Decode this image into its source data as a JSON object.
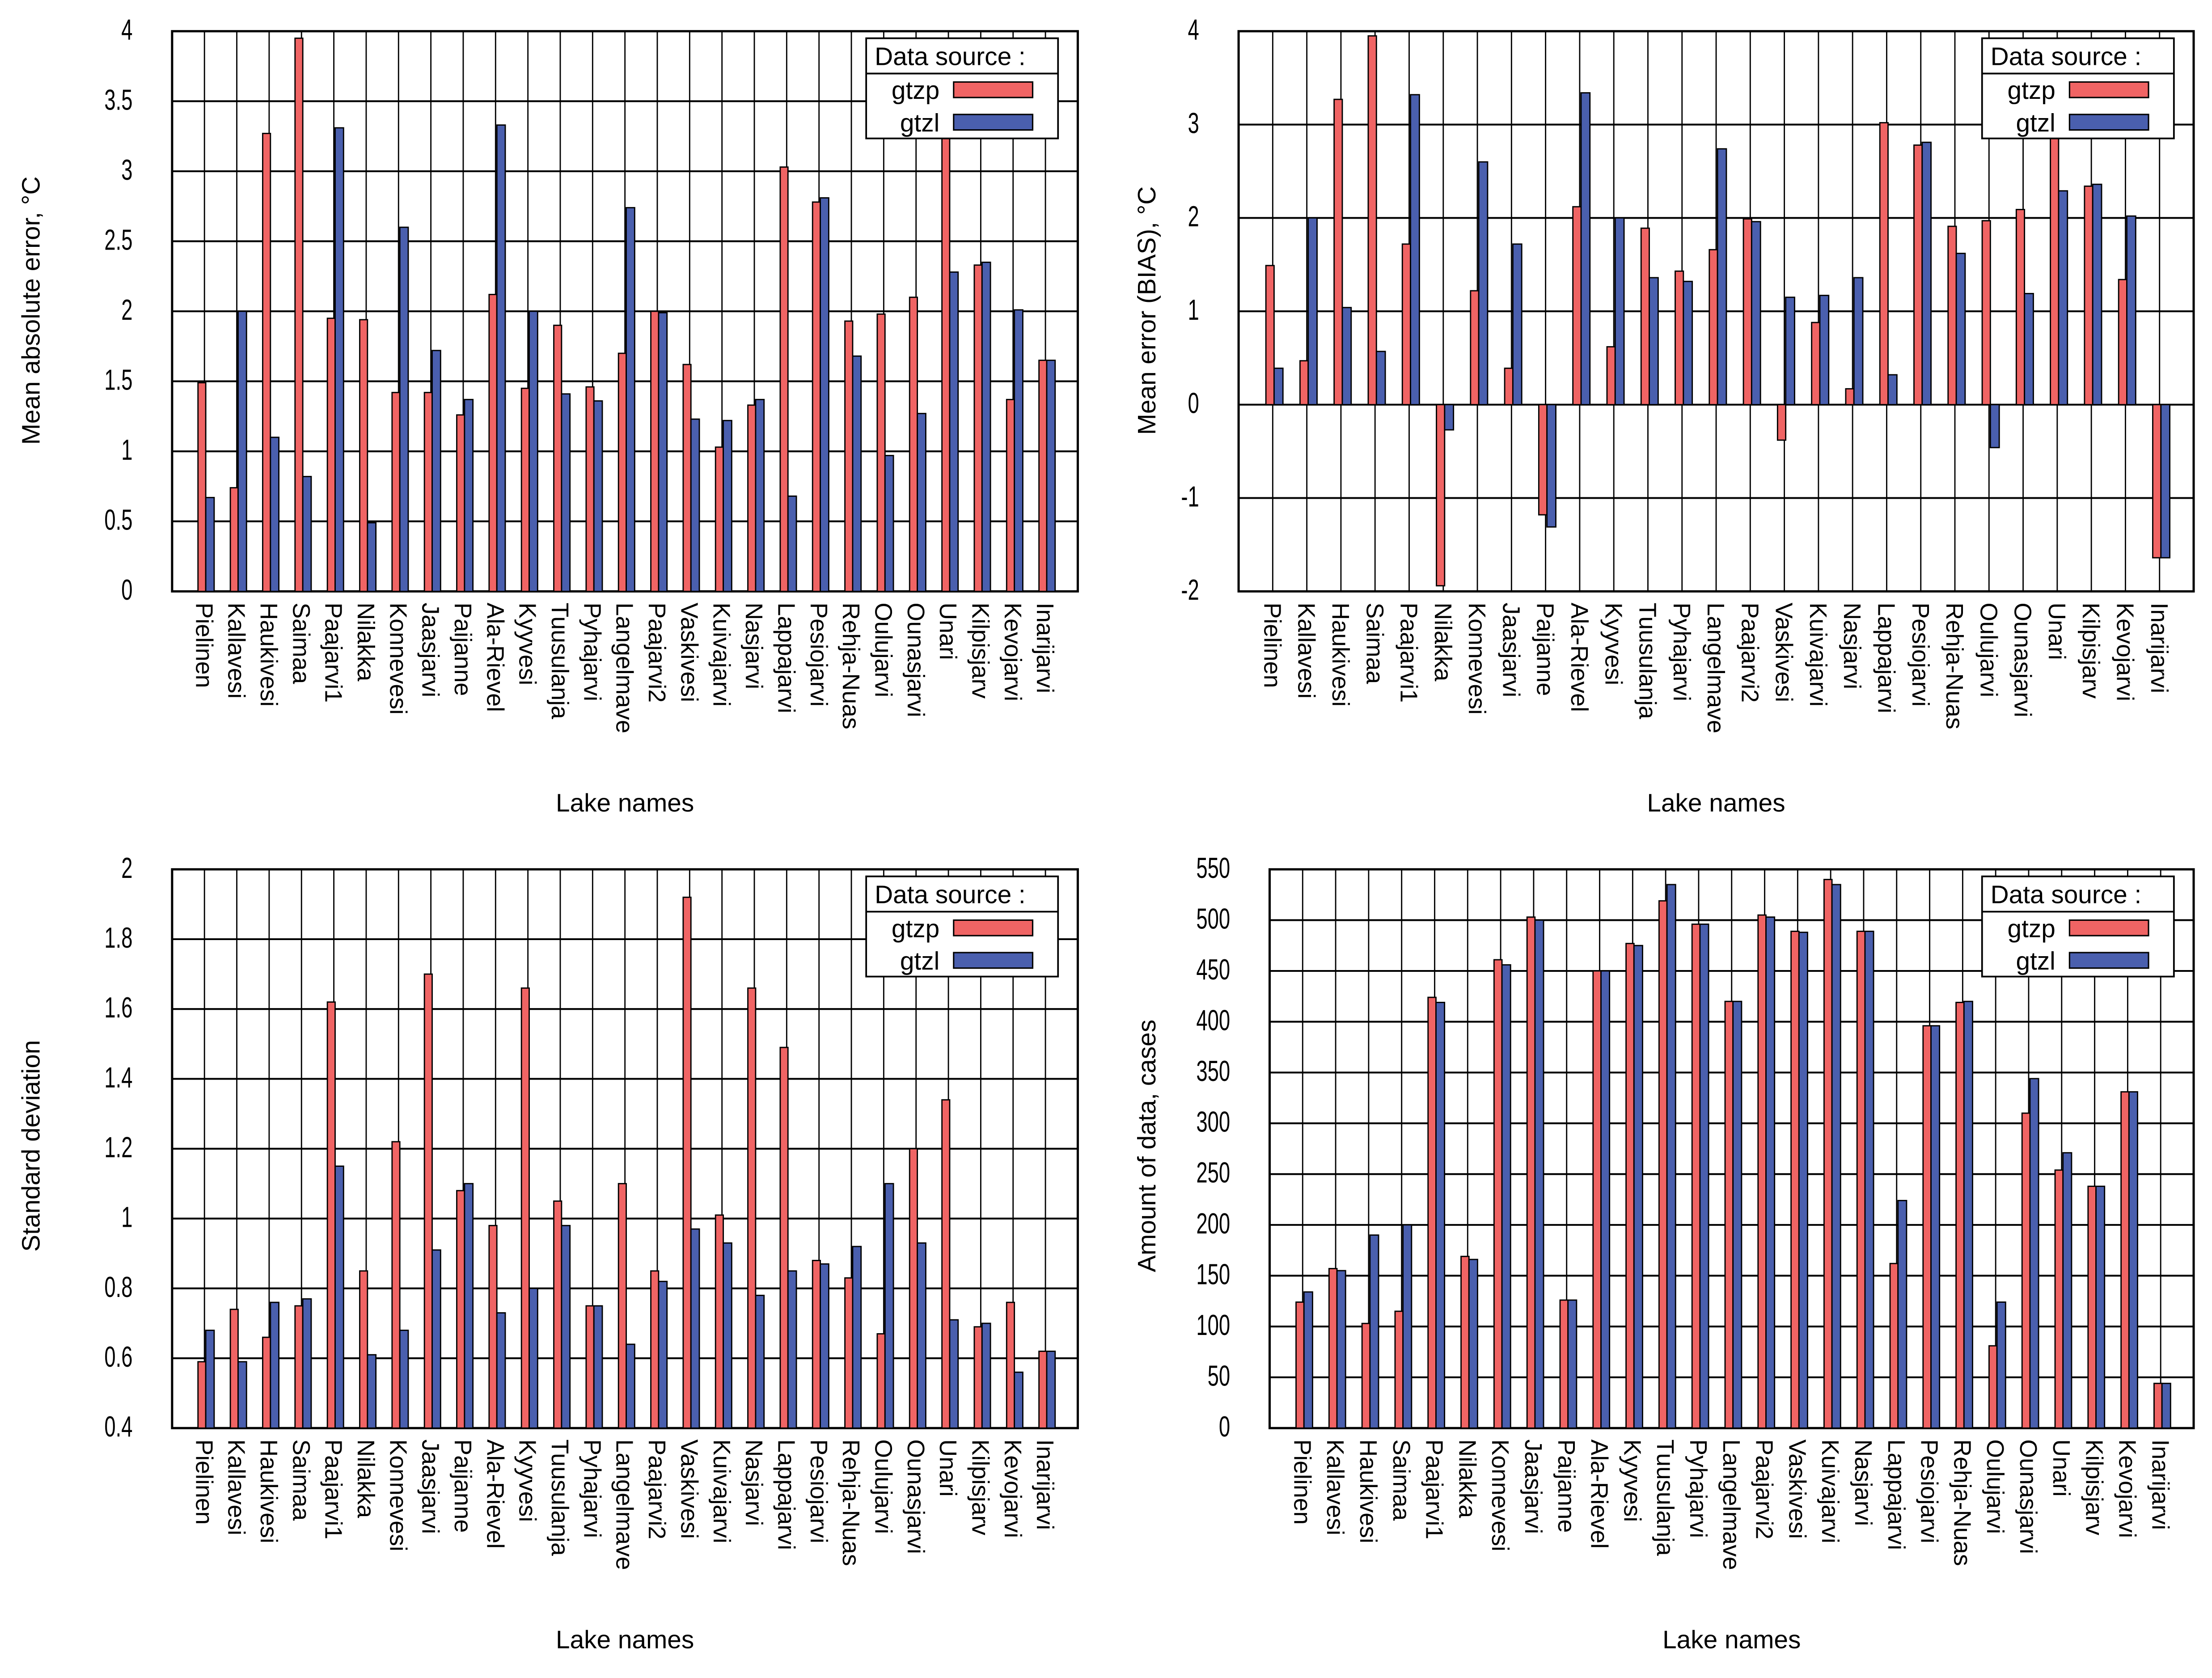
{
  "colors": {
    "gtzp": "#f06464",
    "gtzl": "#4a5fae",
    "grid": "#000000"
  },
  "chart_data": [
    {
      "type": "bar",
      "ylabel": "Mean absolute error, °C",
      "xlabel": "Lake names",
      "ylim": [
        0,
        4
      ],
      "yticks": [
        "0",
        "0.5",
        "1",
        "1.5",
        "2",
        "2.5",
        "3",
        "3.5",
        "4"
      ],
      "ytick_values": [
        0,
        0.5,
        1,
        1.5,
        2,
        2.5,
        3,
        3.5,
        4
      ],
      "grid": true,
      "legend": {
        "title": "Data source :",
        "placement": "top-right"
      },
      "categories": [
        "Pielinen",
        "Kallavesi",
        "Haukivesi",
        "Saimaa",
        "Paajarvi1",
        "Nilakka",
        "Konnevesi",
        "Jaasjarvi",
        "Paijanne",
        "Ala-Rievel",
        "Kyyvesi",
        "Tuusulanja",
        "Pyhajarvi",
        "Langelmave",
        "Paajarvi2",
        "Vaskivesi",
        "Kuivajarvi",
        "Nasjarvi",
        "Lappajarvi",
        "Pesiojarvi",
        "Rehja-Nuas",
        "Oulujarvi",
        "Ounasjarvi",
        "Unari",
        "Kilpisjarv",
        "Kevojarvi",
        "Inarijarvi"
      ],
      "series": [
        {
          "name": "gtzp",
          "values": [
            1.49,
            0.74,
            3.27,
            3.95,
            1.95,
            1.94,
            1.42,
            1.42,
            1.26,
            2.12,
            1.45,
            1.9,
            1.46,
            1.7,
            2.0,
            1.62,
            1.03,
            1.33,
            3.03,
            2.78,
            1.93,
            1.98,
            2.1,
            3.63,
            2.33,
            1.37,
            1.65
          ]
        },
        {
          "name": "gtzl",
          "values": [
            0.67,
            2.0,
            1.1,
            0.82,
            3.31,
            0.49,
            2.6,
            1.72,
            1.37,
            3.33,
            2.0,
            1.41,
            1.36,
            2.74,
            1.99,
            1.23,
            1.22,
            1.37,
            0.68,
            2.81,
            1.68,
            0.97,
            1.27,
            2.28,
            2.35,
            2.01,
            1.65
          ]
        }
      ]
    },
    {
      "type": "bar",
      "ylabel": "Mean error (BIAS), °C",
      "xlabel": "Lake names",
      "ylim": [
        -2,
        4
      ],
      "yticks": [
        "-2",
        "-1",
        "0",
        "1",
        "2",
        "3",
        "4"
      ],
      "ytick_values": [
        -2,
        -1,
        0,
        1,
        2,
        3,
        4
      ],
      "grid": true,
      "legend": {
        "title": "Data source :",
        "placement": "top-right"
      },
      "categories": [
        "Pielinen",
        "Kallavesi",
        "Haukivesi",
        "Saimaa",
        "Paajarvi1",
        "Nilakka",
        "Konnevesi",
        "Jaasjarvi",
        "Paijanne",
        "Ala-Rievel",
        "Kyyvesi",
        "Tuusulanja",
        "Pyhajarvi",
        "Langelmave",
        "Paajarvi2",
        "Vaskivesi",
        "Kuivajarvi",
        "Nasjarvi",
        "Lappajarvi",
        "Pesiojarvi",
        "Rehja-Nuas",
        "Oulujarvi",
        "Ounasjarvi",
        "Unari",
        "Kilpisjarv",
        "Kevojarvi",
        "Inarijarvi"
      ],
      "series": [
        {
          "name": "gtzp",
          "values": [
            1.49,
            0.47,
            3.27,
            3.95,
            1.72,
            -1.94,
            1.22,
            0.39,
            -1.18,
            2.12,
            0.62,
            1.89,
            1.43,
            1.66,
            1.99,
            -0.38,
            0.88,
            0.17,
            3.02,
            2.78,
            1.91,
            1.97,
            2.09,
            3.64,
            2.34,
            1.34,
            -1.64
          ]
        },
        {
          "name": "gtzl",
          "values": [
            0.39,
            2.0,
            1.04,
            0.57,
            3.32,
            -0.27,
            2.6,
            1.72,
            -1.31,
            3.34,
            2.0,
            1.36,
            1.32,
            2.74,
            1.96,
            1.15,
            1.17,
            1.36,
            0.32,
            2.81,
            1.62,
            -0.46,
            1.19,
            2.29,
            2.36,
            2.02,
            -1.64
          ]
        }
      ]
    },
    {
      "type": "bar",
      "ylabel": "Standard deviation",
      "xlabel": "Lake names",
      "ylim": [
        0.4,
        2
      ],
      "yticks": [
        "0.4",
        "0.6",
        "0.8",
        "1",
        "1.2",
        "1.4",
        "1.6",
        "1.8",
        "2"
      ],
      "ytick_values": [
        0.4,
        0.6,
        0.8,
        1,
        1.2,
        1.4,
        1.6,
        1.8,
        2
      ],
      "grid": true,
      "legend": {
        "title": "Data source :",
        "placement": "top-right"
      },
      "categories": [
        "Pielinen",
        "Kallavesi",
        "Haukivesi",
        "Saimaa",
        "Paajarvi1",
        "Nilakka",
        "Konnevesi",
        "Jaasjarvi",
        "Paijanne",
        "Ala-Rievel",
        "Kyyvesi",
        "Tuusulanja",
        "Pyhajarvi",
        "Langelmave",
        "Paajarvi2",
        "Vaskivesi",
        "Kuivajarvi",
        "Nasjarvi",
        "Lappajarvi",
        "Pesiojarvi",
        "Rehja-Nuas",
        "Oulujarvi",
        "Ounasjarvi",
        "Unari",
        "Kilpisjarv",
        "Kevojarvi",
        "Inarijarvi"
      ],
      "series": [
        {
          "name": "gtzp",
          "values": [
            0.59,
            0.74,
            0.66,
            0.75,
            1.62,
            0.85,
            1.22,
            1.7,
            1.08,
            0.98,
            1.66,
            1.05,
            0.75,
            1.1,
            0.85,
            1.92,
            1.01,
            1.66,
            1.49,
            0.88,
            0.83,
            0.67,
            1.2,
            1.34,
            0.69,
            0.76,
            0.62
          ]
        },
        {
          "name": "gtzl",
          "values": [
            0.68,
            0.59,
            0.76,
            0.77,
            1.15,
            0.61,
            0.68,
            0.91,
            1.1,
            0.73,
            0.8,
            0.98,
            0.75,
            0.64,
            0.82,
            0.97,
            0.93,
            0.78,
            0.85,
            0.87,
            0.92,
            1.1,
            0.93,
            0.71,
            0.7,
            0.56,
            0.62
          ]
        }
      ]
    },
    {
      "type": "bar",
      "ylabel": "Amount of data, cases",
      "xlabel": "Lake names",
      "ylim": [
        0,
        550
      ],
      "yticks": [
        "0",
        "50",
        "100",
        "150",
        "200",
        "250",
        "300",
        "350",
        "400",
        "450",
        "500",
        "550"
      ],
      "ytick_values": [
        0,
        50,
        100,
        150,
        200,
        250,
        300,
        350,
        400,
        450,
        500,
        550
      ],
      "grid": true,
      "legend": {
        "title": "Data source :",
        "placement": "top-right"
      },
      "categories": [
        "Pielinen",
        "Kallavesi",
        "Haukivesi",
        "Saimaa",
        "Paajarvi1",
        "Nilakka",
        "Konnevesi",
        "Jaasjarvi",
        "Paijanne",
        "Ala-Rievel",
        "Kyyvesi",
        "Tuusulanja",
        "Pyhajarvi",
        "Langelmave",
        "Paajarvi2",
        "Vaskivesi",
        "Kuivajarvi",
        "Nasjarvi",
        "Lappajarvi",
        "Pesiojarvi",
        "Rehja-Nuas",
        "Oulujarvi",
        "Ounasjarvi",
        "Unari",
        "Kilpisjarv",
        "Kevojarvi",
        "Inarijarvi"
      ],
      "series": [
        {
          "name": "gtzp",
          "values": [
            124,
            157,
            103,
            115,
            424,
            169,
            461,
            503,
            126,
            450,
            477,
            519,
            496,
            420,
            505,
            489,
            540,
            489,
            162,
            396,
            419,
            81,
            310,
            254,
            238,
            331,
            44
          ]
        },
        {
          "name": "gtzl",
          "values": [
            134,
            155,
            190,
            200,
            419,
            166,
            456,
            500,
            126,
            450,
            475,
            535,
            496,
            420,
            503,
            488,
            535,
            489,
            224,
            396,
            420,
            124,
            344,
            271,
            238,
            331,
            44
          ]
        }
      ]
    }
  ]
}
